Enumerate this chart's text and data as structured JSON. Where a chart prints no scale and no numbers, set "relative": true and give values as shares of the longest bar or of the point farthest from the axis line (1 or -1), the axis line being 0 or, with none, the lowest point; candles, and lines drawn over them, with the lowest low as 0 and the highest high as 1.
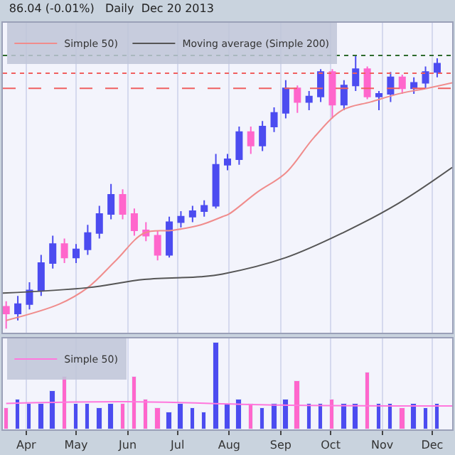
{
  "chart_data": [
    {
      "type": "candlestick",
      "title": "86.04 (-0.01%)   Daily  Dec 20 2013",
      "relative": true,
      "tick_labels": false,
      "grid": "x",
      "legend": "top left",
      "xlim": [
        "2013-03-18",
        "2013-12-13"
      ],
      "xticks": [
        {
          "value": "2013-04-01",
          "label": null
        },
        {
          "value": "2013-05-01",
          "label": null
        },
        {
          "value": "2013-06-01",
          "label": null
        },
        {
          "value": "2013-07-01",
          "label": null
        },
        {
          "value": "2013-08-01",
          "label": null
        },
        {
          "value": "2013-09-01",
          "label": null
        },
        {
          "value": "2013-10-01",
          "label": null
        },
        {
          "value": "2013-11-01",
          "label": null
        },
        {
          "value": "2013-12-01",
          "label": null
        }
      ],
      "ref_lines": [
        {
          "axis": "y",
          "value": 1.0,
          "color": "#2e6b2e",
          "line_style": "dotted"
        },
        {
          "axis": "y",
          "value": 0.935,
          "color": "#f06060",
          "line_style": "dotted"
        },
        {
          "axis": "y",
          "value": 0.88,
          "color": "#f06060",
          "line_style": "dashed"
        }
      ],
      "series": [
        {
          "colors": [
            "#ff66cc",
            "#4c4cf0",
            "#4c4cf0",
            "#4c4cf0",
            "#4c4cf0",
            "#ff66cc",
            "#4c4cf0",
            "#4c4cf0",
            "#4c4cf0",
            "#4c4cf0",
            "#ff66cc",
            "#ff66cc",
            "#ff66cc",
            "#ff66cc",
            "#4c4cf0",
            "#4c4cf0",
            "#4c4cf0",
            "#4c4cf0",
            "#4c4cf0",
            "#4c4cf0",
            "#4c4cf0",
            "#ff66cc",
            "#4c4cf0",
            "#4c4cf0",
            "#4c4cf0",
            "#ff66cc",
            "#4c4cf0",
            "#4c4cf0",
            "#ff66cc",
            "#4c4cf0",
            "#4c4cf0",
            "#ff66cc",
            "#4c4cf0",
            "#4c4cf0",
            "#ff66cc",
            "#4c4cf0",
            "#4c4cf0",
            "#4c4cf0"
          ],
          "x": [
            "2013-03-20",
            "2013-03-27",
            "2013-04-03",
            "2013-04-10",
            "2013-04-17",
            "2013-04-24",
            "2013-05-01",
            "2013-05-08",
            "2013-05-15",
            "2013-05-22",
            "2013-05-29",
            "2013-06-05",
            "2013-06-12",
            "2013-06-19",
            "2013-06-26",
            "2013-07-03",
            "2013-07-10",
            "2013-07-17",
            "2013-07-24",
            "2013-07-31",
            "2013-08-07",
            "2013-08-14",
            "2013-08-21",
            "2013-08-28",
            "2013-09-04",
            "2013-09-11",
            "2013-09-18",
            "2013-09-25",
            "2013-10-02",
            "2013-10-09",
            "2013-10-16",
            "2013-10-23",
            "2013-10-30",
            "2013-11-06",
            "2013-11-13",
            "2013-11-20",
            "2013-11-27",
            "2013-12-04"
          ],
          "ohlc": [
            [
              0.08,
              0.1,
              0.0,
              0.055
            ],
            [
              0.055,
              0.12,
              0.03,
              0.09
            ],
            [
              0.09,
              0.17,
              0.07,
              0.14
            ],
            [
              0.14,
              0.27,
              0.12,
              0.24
            ],
            [
              0.24,
              0.34,
              0.22,
              0.31
            ],
            [
              0.31,
              0.33,
              0.24,
              0.26
            ],
            [
              0.26,
              0.31,
              0.24,
              0.29
            ],
            [
              0.29,
              0.38,
              0.27,
              0.35
            ],
            [
              0.35,
              0.45,
              0.33,
              0.42
            ],
            [
              0.42,
              0.53,
              0.4,
              0.49
            ],
            [
              0.49,
              0.51,
              0.4,
              0.42
            ],
            [
              0.42,
              0.44,
              0.34,
              0.36
            ],
            [
              0.36,
              0.39,
              0.32,
              0.34
            ],
            [
              0.34,
              0.36,
              0.25,
              0.27
            ],
            [
              0.27,
              0.41,
              0.26,
              0.39
            ],
            [
              0.39,
              0.43,
              0.37,
              0.41
            ],
            [
              0.41,
              0.45,
              0.39,
              0.43
            ],
            [
              0.43,
              0.47,
              0.41,
              0.45
            ],
            [
              0.45,
              0.64,
              0.44,
              0.6
            ],
            [
              0.6,
              0.64,
              0.58,
              0.62
            ],
            [
              0.62,
              0.74,
              0.6,
              0.72
            ],
            [
              0.72,
              0.74,
              0.64,
              0.67
            ],
            [
              0.67,
              0.76,
              0.65,
              0.74
            ],
            [
              0.74,
              0.81,
              0.72,
              0.79
            ],
            [
              0.79,
              0.91,
              0.77,
              0.88
            ],
            [
              0.88,
              0.89,
              0.79,
              0.83
            ],
            [
              0.83,
              0.87,
              0.8,
              0.85
            ],
            [
              0.85,
              0.95,
              0.83,
              0.94
            ],
            [
              0.94,
              0.95,
              0.77,
              0.82
            ],
            [
              0.82,
              0.91,
              0.8,
              0.89
            ],
            [
              0.89,
              1.0,
              0.87,
              0.95
            ],
            [
              0.95,
              0.96,
              0.84,
              0.85
            ],
            [
              0.85,
              0.87,
              0.8,
              0.86
            ],
            [
              0.86,
              0.94,
              0.83,
              0.92
            ],
            [
              0.92,
              0.93,
              0.86,
              0.88
            ],
            [
              0.88,
              0.92,
              0.86,
              0.9
            ],
            [
              0.9,
              0.96,
              0.88,
              0.94
            ],
            [
              0.94,
              0.99,
              0.92,
              0.97
            ]
          ]
        },
        {
          "type": "line",
          "name": "Simple 50)",
          "color": "#f08c8c",
          "x": [
            "2013-03-20",
            "2013-04-21",
            "2013-05-08",
            "2013-05-25",
            "2013-06-11",
            "2013-06-28",
            "2013-07-15",
            "2013-07-28",
            "2013-08-01",
            "2013-08-18",
            "2013-09-04",
            "2013-09-21",
            "2013-10-08",
            "2013-10-25",
            "2013-11-11",
            "2013-11-28",
            "2013-12-13"
          ],
          "values": [
            0.03,
            0.09,
            0.15,
            0.25,
            0.35,
            0.36,
            0.38,
            0.41,
            0.42,
            0.5,
            0.57,
            0.7,
            0.8,
            0.83,
            0.86,
            0.88,
            0.9
          ]
        },
        {
          "type": "line",
          "name": "Moving average (Simple 200)",
          "color": "#555555",
          "x": [
            "2013-03-18",
            "2013-05-08",
            "2013-06-11",
            "2013-07-15",
            "2013-07-28",
            "2013-09-04",
            "2013-10-08",
            "2013-11-11",
            "2013-12-13"
          ],
          "values": [
            0.13,
            0.15,
            0.18,
            0.19,
            0.2,
            0.26,
            0.35,
            0.46,
            0.59
          ]
        }
      ]
    },
    {
      "type": "bar",
      "relative": true,
      "tick_labels": "x",
      "grid": "x",
      "legend": "top left",
      "xlim": [
        "2013-03-18",
        "2013-12-13"
      ],
      "xticks": [
        {
          "value": "2013-04-01",
          "label": "Apr"
        },
        {
          "value": "2013-05-01",
          "label": "May"
        },
        {
          "value": "2013-06-01",
          "label": "Jun"
        },
        {
          "value": "2013-07-01",
          "label": "Jul"
        },
        {
          "value": "2013-08-01",
          "label": "Aug"
        },
        {
          "value": "2013-09-01",
          "label": "Sep"
        },
        {
          "value": "2013-10-01",
          "label": "Oct"
        },
        {
          "value": "2013-11-01",
          "label": "Nov"
        },
        {
          "value": "2013-12-01",
          "label": "Dec"
        }
      ],
      "series": [
        {
          "x": [
            "2013-03-20",
            "2013-03-27",
            "2013-04-03",
            "2013-04-10",
            "2013-04-17",
            "2013-04-24",
            "2013-05-01",
            "2013-05-08",
            "2013-05-15",
            "2013-05-22",
            "2013-05-29",
            "2013-06-05",
            "2013-06-12",
            "2013-06-19",
            "2013-06-26",
            "2013-07-03",
            "2013-07-10",
            "2013-07-17",
            "2013-07-24",
            "2013-07-31",
            "2013-08-07",
            "2013-08-14",
            "2013-08-21",
            "2013-08-28",
            "2013-09-04",
            "2013-09-11",
            "2013-09-18",
            "2013-09-25",
            "2013-10-02",
            "2013-10-09",
            "2013-10-16",
            "2013-10-23",
            "2013-10-30",
            "2013-11-06",
            "2013-11-13",
            "2013-11-20",
            "2013-11-27",
            "2013-12-04"
          ],
          "values": [
            0.25,
            0.35,
            0.3,
            0.3,
            0.45,
            0.6,
            0.3,
            0.3,
            0.25,
            0.3,
            0.3,
            0.6,
            0.35,
            0.25,
            0.2,
            0.3,
            0.25,
            0.2,
            1.0,
            0.3,
            0.35,
            0.3,
            0.25,
            0.3,
            0.35,
            0.55,
            0.3,
            0.3,
            0.35,
            0.3,
            0.3,
            0.65,
            0.3,
            0.3,
            0.25,
            0.3,
            0.25,
            0.3
          ],
          "colors": [
            "#ff66cc",
            "#4c4cf0",
            "#4c4cf0",
            "#4c4cf0",
            "#4c4cf0",
            "#ff66cc",
            "#4c4cf0",
            "#4c4cf0",
            "#4c4cf0",
            "#4c4cf0",
            "#ff66cc",
            "#ff66cc",
            "#ff66cc",
            "#ff66cc",
            "#4c4cf0",
            "#4c4cf0",
            "#4c4cf0",
            "#4c4cf0",
            "#4c4cf0",
            "#4c4cf0",
            "#4c4cf0",
            "#ff66cc",
            "#4c4cf0",
            "#4c4cf0",
            "#4c4cf0",
            "#ff66cc",
            "#4c4cf0",
            "#4c4cf0",
            "#ff66cc",
            "#4c4cf0",
            "#4c4cf0",
            "#ff66cc",
            "#4c4cf0",
            "#4c4cf0",
            "#ff66cc",
            "#4c4cf0",
            "#4c4cf0",
            "#4c4cf0"
          ]
        },
        {
          "type": "line",
          "name": "Simple 50)",
          "color": "#ff77dd",
          "x": [
            "2013-03-20",
            "2013-06-01",
            "2013-09-01",
            "2013-12-13"
          ],
          "values": [
            0.3,
            0.32,
            0.28,
            0.27
          ]
        }
      ]
    }
  ]
}
